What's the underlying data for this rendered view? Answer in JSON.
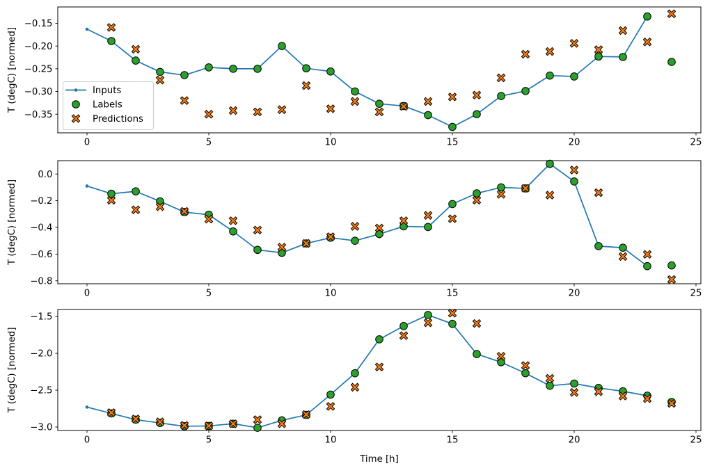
{
  "figure": {
    "background": "#ffffff",
    "xlabel": "Time [h]"
  },
  "chart_data": [
    {
      "type": "line",
      "title": "",
      "xlabel": "",
      "ylabel": "T (degC) [normed]",
      "xlim": [
        -1.2,
        25.2
      ],
      "ylim": [
        -0.391,
        -0.114
      ],
      "xticks": [
        0,
        5,
        10,
        15,
        20,
        25
      ],
      "yticks": [
        -0.15,
        -0.2,
        -0.25,
        -0.3,
        -0.35
      ],
      "ytick_decimals": 2,
      "grid": false,
      "legend": {
        "visible": true,
        "location": "center-left"
      },
      "series": [
        {
          "name": "Inputs",
          "kind": "line",
          "marker": "dot",
          "color": "#1f77b4",
          "x": [
            0,
            1,
            2,
            3,
            4,
            5,
            6,
            7,
            8,
            9,
            10,
            11,
            12,
            13,
            14,
            15,
            16,
            17,
            18,
            19,
            20,
            21,
            22,
            23
          ],
          "y": [
            -0.163,
            -0.189,
            -0.232,
            -0.257,
            -0.264,
            -0.247,
            -0.25,
            -0.25,
            -0.2,
            -0.249,
            -0.256,
            -0.3,
            -0.327,
            -0.332,
            -0.352,
            -0.378,
            -0.35,
            -0.31,
            -0.299,
            -0.265,
            -0.267,
            -0.223,
            -0.224,
            -0.135
          ]
        },
        {
          "name": "Labels",
          "kind": "scatter",
          "marker": "circle",
          "color": "#2ca02c",
          "edge": "#000000",
          "x": [
            1,
            2,
            3,
            4,
            5,
            6,
            7,
            8,
            9,
            10,
            11,
            12,
            13,
            14,
            15,
            16,
            17,
            18,
            19,
            20,
            21,
            22,
            23,
            24
          ],
          "y": [
            -0.189,
            -0.232,
            -0.257,
            -0.264,
            -0.247,
            -0.25,
            -0.25,
            -0.2,
            -0.249,
            -0.256,
            -0.3,
            -0.327,
            -0.332,
            -0.352,
            -0.378,
            -0.35,
            -0.31,
            -0.299,
            -0.265,
            -0.267,
            -0.223,
            -0.224,
            -0.135,
            -0.235
          ]
        },
        {
          "name": "Predictions",
          "kind": "scatter",
          "marker": "X",
          "color": "#ff7f0e",
          "edge": "#000000",
          "x": [
            1,
            2,
            3,
            4,
            5,
            6,
            7,
            8,
            9,
            10,
            11,
            12,
            13,
            14,
            15,
            16,
            17,
            18,
            19,
            20,
            21,
            22,
            23,
            24
          ],
          "y": [
            -0.159,
            -0.207,
            -0.275,
            -0.32,
            -0.35,
            -0.342,
            -0.345,
            -0.34,
            -0.287,
            -0.338,
            -0.322,
            -0.345,
            -0.333,
            -0.322,
            -0.312,
            -0.308,
            -0.27,
            -0.218,
            -0.212,
            -0.194,
            -0.208,
            -0.166,
            -0.191,
            -0.129
          ]
        }
      ]
    },
    {
      "type": "line",
      "title": "",
      "xlabel": "",
      "ylabel": "T (degC) [normed]",
      "xlim": [
        -1.2,
        25.2
      ],
      "ylim": [
        -0.822,
        0.1
      ],
      "xticks": [
        0,
        5,
        10,
        15,
        20,
        25
      ],
      "yticks": [
        0.0,
        -0.2,
        -0.4,
        -0.6,
        -0.8
      ],
      "ytick_decimals": 1,
      "grid": false,
      "legend": {
        "visible": false
      },
      "series": [
        {
          "name": "Inputs",
          "kind": "line",
          "marker": "dot",
          "color": "#1f77b4",
          "x": [
            0,
            1,
            2,
            3,
            4,
            5,
            6,
            7,
            8,
            9,
            10,
            11,
            12,
            13,
            14,
            15,
            16,
            17,
            18,
            19,
            20,
            21,
            22,
            23
          ],
          "y": [
            -0.09,
            -0.148,
            -0.13,
            -0.205,
            -0.285,
            -0.305,
            -0.43,
            -0.568,
            -0.59,
            -0.52,
            -0.477,
            -0.5,
            -0.45,
            -0.392,
            -0.397,
            -0.225,
            -0.145,
            -0.1,
            -0.108,
            0.076,
            -0.056,
            -0.54,
            -0.552,
            -0.69
          ]
        },
        {
          "name": "Labels",
          "kind": "scatter",
          "marker": "circle",
          "color": "#2ca02c",
          "edge": "#000000",
          "x": [
            1,
            2,
            3,
            4,
            5,
            6,
            7,
            8,
            9,
            10,
            11,
            12,
            13,
            14,
            15,
            16,
            17,
            18,
            19,
            20,
            21,
            22,
            23,
            24
          ],
          "y": [
            -0.148,
            -0.13,
            -0.205,
            -0.285,
            -0.305,
            -0.43,
            -0.568,
            -0.59,
            -0.52,
            -0.477,
            -0.5,
            -0.45,
            -0.392,
            -0.397,
            -0.225,
            -0.145,
            -0.1,
            -0.108,
            0.076,
            -0.056,
            -0.54,
            -0.552,
            -0.69,
            -0.685
          ]
        },
        {
          "name": "Predictions",
          "kind": "scatter",
          "marker": "X",
          "color": "#ff7f0e",
          "edge": "#000000",
          "x": [
            1,
            2,
            3,
            4,
            5,
            6,
            7,
            8,
            9,
            10,
            11,
            12,
            13,
            14,
            15,
            16,
            17,
            18,
            19,
            20,
            21,
            22,
            23,
            24
          ],
          "y": [
            -0.197,
            -0.268,
            -0.245,
            -0.28,
            -0.338,
            -0.35,
            -0.42,
            -0.548,
            -0.52,
            -0.47,
            -0.392,
            -0.405,
            -0.35,
            -0.31,
            -0.335,
            -0.196,
            -0.152,
            -0.107,
            -0.158,
            0.03,
            -0.14,
            -0.618,
            -0.602,
            -0.79
          ]
        }
      ]
    },
    {
      "type": "line",
      "title": "",
      "xlabel": "Time [h]",
      "ylabel": "T (degC) [normed]",
      "xlim": [
        -1.2,
        25.2
      ],
      "ylim": [
        -3.047,
        -1.405
      ],
      "xticks": [
        0,
        5,
        10,
        15,
        20,
        25
      ],
      "yticks": [
        -1.5,
        -2.0,
        -2.5,
        -3.0
      ],
      "ytick_decimals": 1,
      "grid": false,
      "legend": {
        "visible": false
      },
      "series": [
        {
          "name": "Inputs",
          "kind": "line",
          "marker": "dot",
          "color": "#1f77b4",
          "x": [
            0,
            1,
            2,
            3,
            4,
            5,
            6,
            7,
            8,
            9,
            10,
            11,
            12,
            13,
            14,
            15,
            16,
            17,
            18,
            19,
            20,
            21,
            22,
            23
          ],
          "y": [
            -2.73,
            -2.815,
            -2.9,
            -2.945,
            -2.99,
            -2.985,
            -2.955,
            -3.01,
            -2.91,
            -2.835,
            -2.56,
            -2.27,
            -1.81,
            -1.63,
            -1.48,
            -1.6,
            -2.01,
            -2.12,
            -2.27,
            -2.44,
            -2.41,
            -2.47,
            -2.515,
            -2.575
          ]
        },
        {
          "name": "Labels",
          "kind": "scatter",
          "marker": "circle",
          "color": "#2ca02c",
          "edge": "#000000",
          "x": [
            1,
            2,
            3,
            4,
            5,
            6,
            7,
            8,
            9,
            10,
            11,
            12,
            13,
            14,
            15,
            16,
            17,
            18,
            19,
            20,
            21,
            22,
            23,
            24
          ],
          "y": [
            -2.815,
            -2.9,
            -2.945,
            -2.99,
            -2.985,
            -2.955,
            -3.01,
            -2.91,
            -2.835,
            -2.56,
            -2.27,
            -1.81,
            -1.63,
            -1.48,
            -1.6,
            -2.01,
            -2.12,
            -2.27,
            -2.44,
            -2.41,
            -2.47,
            -2.515,
            -2.575,
            -2.66
          ]
        },
        {
          "name": "Predictions",
          "kind": "scatter",
          "marker": "X",
          "color": "#ff7f0e",
          "edge": "#000000",
          "x": [
            1,
            2,
            3,
            4,
            5,
            6,
            7,
            8,
            9,
            10,
            11,
            12,
            13,
            14,
            15,
            16,
            17,
            18,
            19,
            20,
            21,
            22,
            23,
            24
          ],
          "y": [
            -2.805,
            -2.89,
            -2.93,
            -2.978,
            -2.984,
            -2.956,
            -2.9,
            -2.955,
            -2.83,
            -2.72,
            -2.46,
            -2.185,
            -1.76,
            -1.585,
            -1.455,
            -1.595,
            -2.04,
            -2.165,
            -2.34,
            -2.53,
            -2.52,
            -2.58,
            -2.615,
            -2.68
          ]
        }
      ]
    }
  ]
}
